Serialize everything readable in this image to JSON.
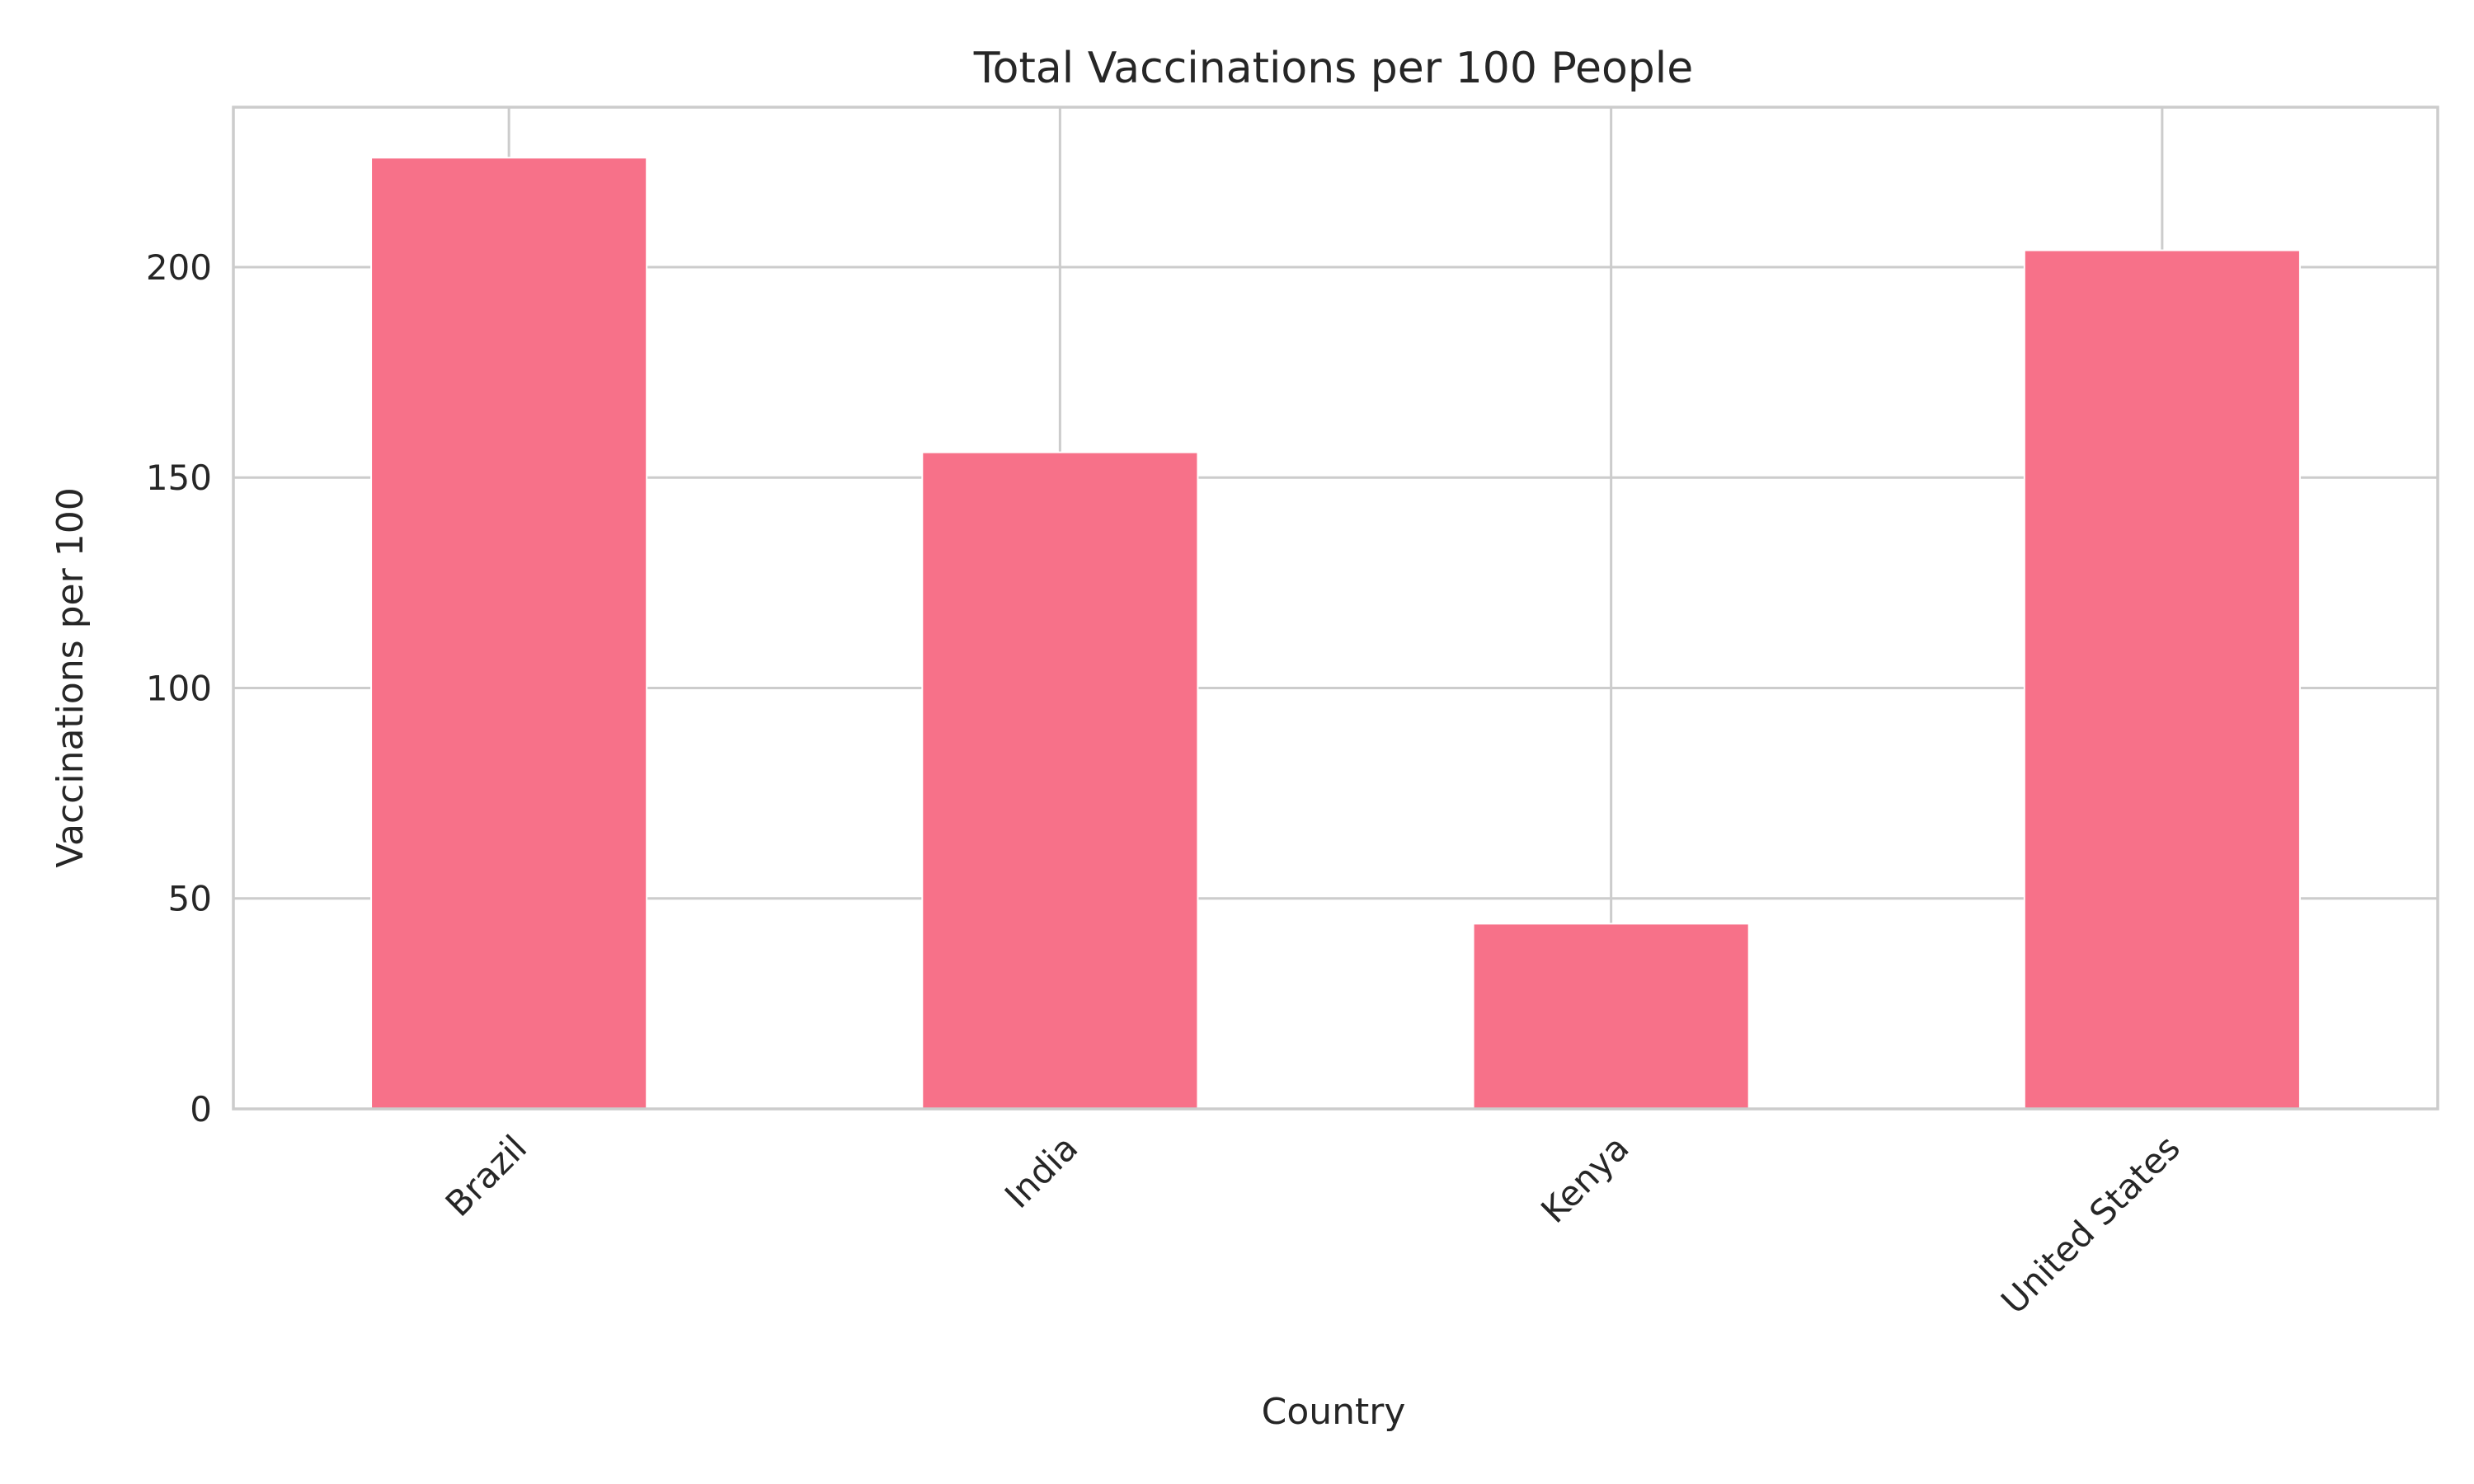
{
  "chart_data": {
    "type": "bar",
    "title": "Total Vaccinations per 100 People",
    "xlabel": "Country",
    "ylabel": "Vaccinations per 100",
    "categories": [
      "Brazil",
      "India",
      "Kenya",
      "United States"
    ],
    "values": [
      226,
      156,
      44,
      204
    ],
    "ylim": [
      0,
      238
    ],
    "yticks": [
      0,
      50,
      100,
      150,
      200
    ],
    "grid": true,
    "bar_color": "#f77189",
    "grid_color": "#cccccc",
    "text_color": "#262626"
  }
}
